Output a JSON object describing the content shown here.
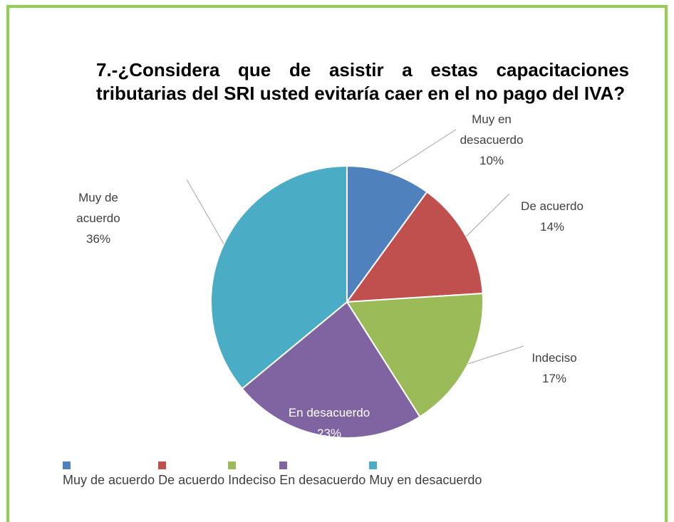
{
  "chart_data": {
    "type": "pie",
    "title": "7.-¿Considera que de asistir a estas capacitaciones tributarias del SRI usted evitaría caer en el no pago del IVA?",
    "categories": [
      "Muy en desacuerdo",
      "De acuerdo",
      "Indeciso",
      "En desacuerdo",
      "Muy de acuerdo"
    ],
    "values": [
      10,
      14,
      17,
      23,
      36
    ],
    "value_labels": [
      "10%",
      "14%",
      "17%",
      "23%",
      "36%"
    ],
    "colors": [
      "#4f81bd",
      "#c0504d",
      "#9bbb59",
      "#8064a2",
      "#4bacc6"
    ],
    "legend": [
      "Muy de acuerdo",
      "De acuerdo",
      "Indeciso",
      "En desacuerdo",
      "Muy en desacuerdo"
    ]
  }
}
